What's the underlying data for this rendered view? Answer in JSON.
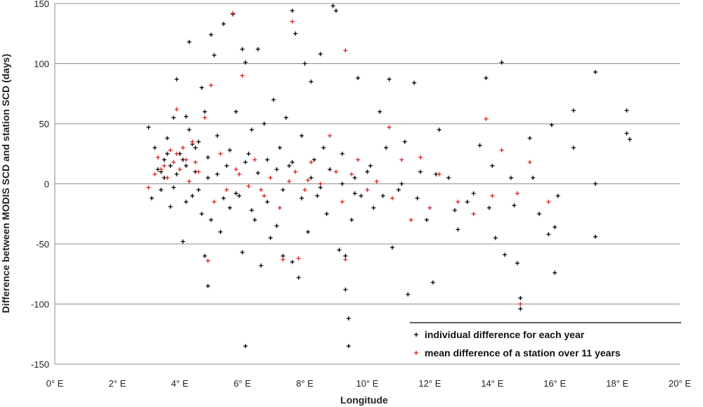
{
  "chart_data": {
    "type": "scatter",
    "title": "",
    "xlabel": "Longitude",
    "ylabel": "Difference between MODIS SCD and station SCD (days)",
    "xlim": [
      0,
      20
    ],
    "ylim": [
      -150,
      150
    ],
    "x_ticks": [
      0,
      2,
      4,
      6,
      8,
      10,
      12,
      14,
      16,
      18,
      20
    ],
    "x_tick_labels": [
      "0° E",
      "2° E",
      "4° E",
      "6° E",
      "8° E",
      "10° E",
      "12° E",
      "14° E",
      "16° E",
      "18° E",
      "20° E"
    ],
    "y_ticks": [
      150,
      100,
      50,
      0,
      -50,
      -100,
      -150
    ],
    "y_tick_labels": [
      "150",
      "100",
      "50",
      "0",
      "-50",
      "-100",
      "-150"
    ],
    "grid": "horizontal",
    "legend_position": "bottom-right",
    "colors": {
      "individual": "#000000",
      "mean": "#dd2222",
      "grid": "#8c8c8c"
    },
    "series": [
      {
        "name": "individual difference for each year",
        "marker": "plus",
        "color": "#000000",
        "points": [
          [
            3.0,
            47
          ],
          [
            3.1,
            -12
          ],
          [
            3.2,
            30
          ],
          [
            3.3,
            12
          ],
          [
            3.4,
            -5
          ],
          [
            3.5,
            20
          ],
          [
            3.6,
            38
          ],
          [
            3.7,
            -19
          ],
          [
            3.8,
            55
          ],
          [
            3.9,
            8
          ],
          [
            4.0,
            25
          ],
          [
            4.1,
            -48
          ],
          [
            4.2,
            15
          ],
          [
            4.3,
            45
          ],
          [
            4.4,
            -10
          ],
          [
            4.5,
            10
          ],
          [
            4.6,
            35
          ],
          [
            4.7,
            -25
          ],
          [
            4.8,
            60
          ],
          [
            4.9,
            5
          ],
          [
            3.9,
            87
          ],
          [
            4.2,
            56
          ],
          [
            4.3,
            118
          ],
          [
            4.5,
            30
          ],
          [
            4.7,
            80
          ],
          [
            4.8,
            -60
          ],
          [
            4.9,
            -85
          ],
          [
            5.0,
            124
          ],
          [
            5.0,
            -30
          ],
          [
            5.1,
            107
          ],
          [
            5.2,
            40
          ],
          [
            5.3,
            -40
          ],
          [
            5.4,
            133
          ],
          [
            5.5,
            15
          ],
          [
            5.6,
            -20
          ],
          [
            5.7,
            141
          ],
          [
            5.8,
            60
          ],
          [
            5.9,
            -10
          ],
          [
            6.0,
            112
          ],
          [
            6.0,
            -57
          ],
          [
            6.1,
            101
          ],
          [
            6.1,
            -135
          ],
          [
            6.2,
            25
          ],
          [
            6.3,
            45
          ],
          [
            6.4,
            -30
          ],
          [
            6.5,
            112
          ],
          [
            6.6,
            -68
          ],
          [
            6.7,
            50
          ],
          [
            6.8,
            20
          ],
          [
            6.9,
            -45
          ],
          [
            7.0,
            70
          ],
          [
            7.1,
            -35
          ],
          [
            7.2,
            30
          ],
          [
            7.3,
            -60
          ],
          [
            7.4,
            55
          ],
          [
            7.5,
            15
          ],
          [
            7.6,
            144
          ],
          [
            7.6,
            -65
          ],
          [
            7.7,
            125
          ],
          [
            7.8,
            -78
          ],
          [
            7.9,
            40
          ],
          [
            8.0,
            100
          ],
          [
            8.1,
            -40
          ],
          [
            8.2,
            85
          ],
          [
            8.3,
            20
          ],
          [
            8.4,
            -10
          ],
          [
            8.5,
            108
          ],
          [
            8.6,
            30
          ],
          [
            8.7,
            -25
          ],
          [
            8.9,
            148
          ],
          [
            9.0,
            144
          ],
          [
            9.1,
            -55
          ],
          [
            9.2,
            25
          ],
          [
            9.3,
            -60
          ],
          [
            9.3,
            -88
          ],
          [
            9.4,
            -112
          ],
          [
            9.4,
            -135
          ],
          [
            9.5,
            -30
          ],
          [
            9.6,
            5
          ],
          [
            9.7,
            88
          ],
          [
            9.8,
            -10
          ],
          [
            10.0,
            10
          ],
          [
            10.2,
            -20
          ],
          [
            10.4,
            60
          ],
          [
            10.6,
            30
          ],
          [
            10.7,
            87
          ],
          [
            10.8,
            -53
          ],
          [
            11.0,
            -5
          ],
          [
            11.2,
            35
          ],
          [
            11.3,
            -92
          ],
          [
            11.5,
            84
          ],
          [
            11.7,
            10
          ],
          [
            11.9,
            -30
          ],
          [
            12.1,
            -82
          ],
          [
            12.3,
            45
          ],
          [
            12.6,
            5
          ],
          [
            12.9,
            -38
          ],
          [
            13.2,
            -15
          ],
          [
            13.6,
            32
          ],
          [
            13.8,
            88
          ],
          [
            13.9,
            -20
          ],
          [
            14.1,
            -45
          ],
          [
            14.3,
            101
          ],
          [
            14.4,
            -59
          ],
          [
            14.6,
            5
          ],
          [
            14.8,
            -66
          ],
          [
            14.9,
            -95
          ],
          [
            14.9,
            -104
          ],
          [
            15.2,
            38
          ],
          [
            15.5,
            -25
          ],
          [
            15.8,
            -42
          ],
          [
            15.9,
            49
          ],
          [
            16.0,
            -74
          ],
          [
            16.0,
            -36
          ],
          [
            16.6,
            61
          ],
          [
            16.6,
            30
          ],
          [
            17.3,
            93
          ],
          [
            17.3,
            -44
          ],
          [
            17.3,
            0
          ],
          [
            18.3,
            61
          ],
          [
            18.3,
            42
          ],
          [
            18.4,
            37
          ],
          [
            3.4,
            10
          ],
          [
            3.5,
            5
          ],
          [
            3.6,
            25
          ],
          [
            3.7,
            15
          ],
          [
            3.8,
            -3
          ],
          [
            4.1,
            20
          ],
          [
            4.2,
            -15
          ],
          [
            4.4,
            33
          ],
          [
            4.6,
            -5
          ],
          [
            4.9,
            22
          ],
          [
            5.2,
            8
          ],
          [
            5.4,
            -12
          ],
          [
            5.6,
            28
          ],
          [
            5.8,
            -8
          ],
          [
            6.1,
            18
          ],
          [
            6.3,
            -22
          ],
          [
            6.5,
            9
          ],
          [
            6.8,
            -15
          ],
          [
            7.1,
            12
          ],
          [
            7.3,
            -5
          ],
          [
            7.6,
            18
          ],
          [
            7.9,
            -12
          ],
          [
            8.2,
            5
          ],
          [
            8.5,
            -3
          ],
          [
            8.8,
            12
          ],
          [
            9.2,
            0
          ],
          [
            9.6,
            -8
          ],
          [
            10.1,
            15
          ],
          [
            10.5,
            -10
          ],
          [
            11.1,
            0
          ],
          [
            11.6,
            -12
          ],
          [
            12.2,
            8
          ],
          [
            12.8,
            -22
          ],
          [
            13.4,
            -8
          ],
          [
            14.0,
            15
          ],
          [
            14.7,
            -18
          ],
          [
            15.3,
            5
          ],
          [
            16.1,
            -10
          ]
        ]
      },
      {
        "name": "mean difference of a station over 11 years",
        "marker": "plus",
        "color": "#dd2222",
        "points": [
          [
            3.0,
            -3
          ],
          [
            3.2,
            8
          ],
          [
            3.3,
            22
          ],
          [
            3.5,
            15
          ],
          [
            3.6,
            5
          ],
          [
            3.7,
            28
          ],
          [
            3.8,
            18
          ],
          [
            3.9,
            62
          ],
          [
            4.0,
            12
          ],
          [
            4.1,
            30
          ],
          [
            4.2,
            20
          ],
          [
            4.3,
            2
          ],
          [
            4.4,
            35
          ],
          [
            4.6,
            10
          ],
          [
            4.8,
            55
          ],
          [
            4.9,
            -64
          ],
          [
            5.0,
            82
          ],
          [
            5.1,
            -15
          ],
          [
            5.3,
            25
          ],
          [
            5.5,
            -5
          ],
          [
            5.7,
            142
          ],
          [
            5.8,
            12
          ],
          [
            6.0,
            90
          ],
          [
            6.2,
            -2
          ],
          [
            6.4,
            20
          ],
          [
            6.7,
            -10
          ],
          [
            6.9,
            5
          ],
          [
            7.2,
            -20
          ],
          [
            7.3,
            -63
          ],
          [
            7.5,
            2
          ],
          [
            7.6,
            135
          ],
          [
            7.7,
            10
          ],
          [
            7.8,
            -62
          ],
          [
            8.0,
            -5
          ],
          [
            8.2,
            18
          ],
          [
            8.5,
            0
          ],
          [
            8.8,
            40
          ],
          [
            9.0,
            10
          ],
          [
            9.2,
            -15
          ],
          [
            9.3,
            111
          ],
          [
            9.3,
            -63
          ],
          [
            9.5,
            8
          ],
          [
            9.7,
            20
          ],
          [
            10.0,
            -5
          ],
          [
            10.3,
            2
          ],
          [
            10.7,
            47
          ],
          [
            10.8,
            -12
          ],
          [
            11.1,
            20
          ],
          [
            11.4,
            -30
          ],
          [
            11.7,
            22
          ],
          [
            12.0,
            -20
          ],
          [
            12.3,
            8
          ],
          [
            12.9,
            -15
          ],
          [
            13.4,
            -25
          ],
          [
            13.8,
            54
          ],
          [
            14.0,
            -10
          ],
          [
            14.3,
            28
          ],
          [
            14.8,
            -8
          ],
          [
            14.9,
            -100
          ],
          [
            15.2,
            18
          ],
          [
            15.8,
            -15
          ],
          [
            3.4,
            12
          ],
          [
            3.9,
            25
          ],
          [
            4.5,
            18
          ],
          [
            5.9,
            8
          ],
          [
            6.6,
            -5
          ],
          [
            8.1,
            3
          ]
        ]
      }
    ]
  }
}
